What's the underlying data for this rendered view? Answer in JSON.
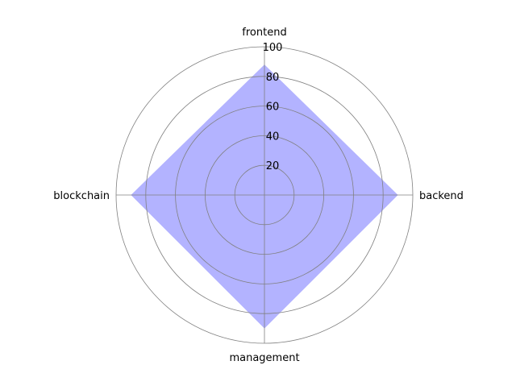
{
  "chart_data": {
    "type": "radar",
    "title": "",
    "categories": [
      "frontend",
      "backend",
      "management",
      "blockchain"
    ],
    "series": [
      {
        "values": [
          88,
          90,
          90,
          90
        ],
        "color": "#b3b3ff"
      }
    ],
    "rlim": [
      0,
      100
    ],
    "rticks": [
      20,
      40,
      60,
      80,
      100
    ],
    "grid": true,
    "grid_color": "#808080"
  }
}
